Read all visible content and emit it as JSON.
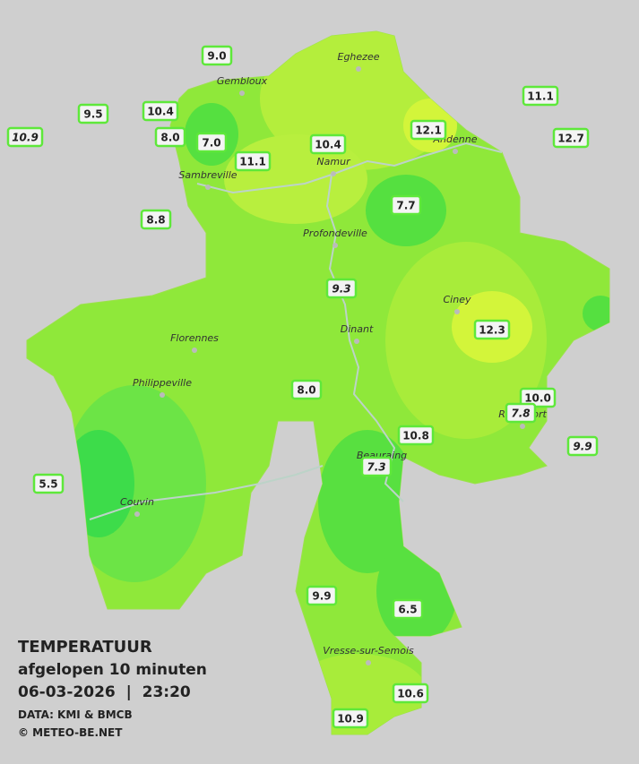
{
  "header": {
    "title": "TEMPERATUUR",
    "subtitle": "afgelopen 10 minuten",
    "datetime": "06-03-2026  |  23:20",
    "source": "DATA: KMI & BMCB",
    "credit": "© METEO-BE.NET"
  },
  "cities": [
    "Eghezee",
    "Gembloux",
    "Andenne",
    "Namur",
    "Sambreville",
    "Profondeville",
    "Ciney",
    "Dinant",
    "Florennes",
    "Philippeville",
    "Rochefort",
    "Beauraing",
    "Couvin",
    "Vresse-sur-Semois"
  ],
  "stations": [
    "9.0",
    "9.5",
    "10.4",
    "10.9",
    "8.0",
    "7.0",
    "11.1",
    "10.4",
    "12.1",
    "11.1",
    "12.7",
    "7.7",
    "8.8",
    "9.3",
    "12.3",
    "8.0",
    "10.0",
    "7.8",
    "10.8",
    "9.9",
    "7.3",
    "5.5",
    "9.9",
    "6.5",
    "10.6",
    "10.9"
  ]
}
